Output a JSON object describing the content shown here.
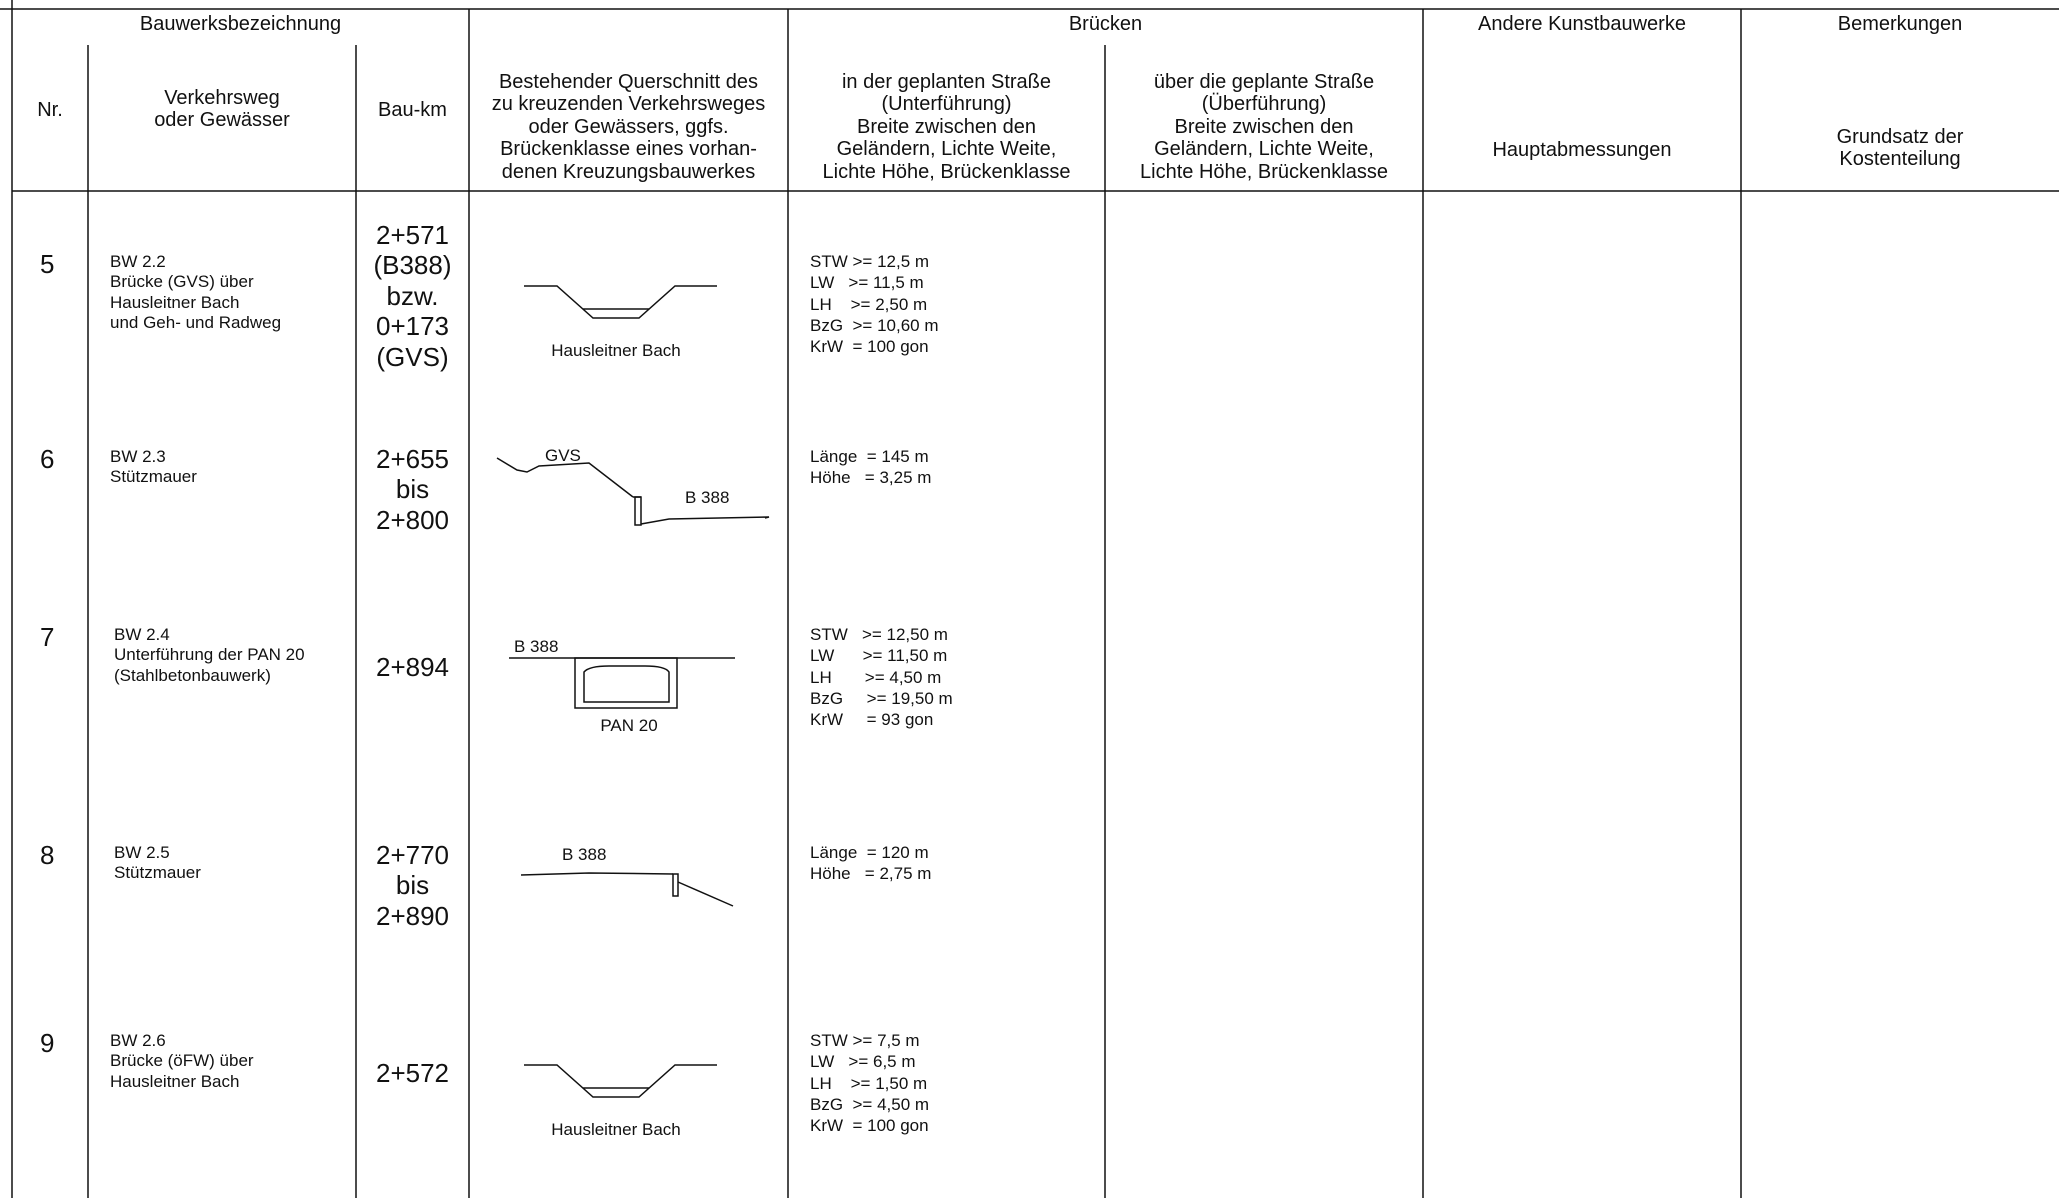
{
  "header": {
    "group_bauwerk": "Bauwerksbezeichnung",
    "group_bruecken": "Brücken",
    "group_andere": "Andere Kunstbauwerke",
    "group_bemerkungen": "Bemerkungen",
    "col_nr": "Nr.",
    "col_verkehrsweg": "Verkehrsweg\noder Gewässer",
    "col_baukm": "Bau-km",
    "col_querschnitt": "Bestehender Querschnitt des\nzu kreuzenden Verkehrsweges\noder Gewässers, ggfs.\nBrückenklasse eines vorhan-\ndenen Kreuzungsbauwerkes",
    "col_unterfuehrung": "in der geplanten Straße\n(Unterführung)\nBreite zwischen den\nGeländern, Lichte Weite,\nLichte Höhe, Brückenklasse",
    "col_ueberfuehrung": "über die geplante Straße\n(Überführung)\nBreite zwischen den\nGeländern, Lichte Weite,\nLichte Höhe, Brückenklasse",
    "col_hauptabmessungen": "Hauptabmessungen",
    "col_kostenteilung": "Grundsatz der\nKostenteilung"
  },
  "rows": [
    {
      "nr": "5",
      "name": "BW 2.2\nBrücke (GVS) über\nHausleitner Bach\nund Geh- und Radweg",
      "baukm": "2+571\n(B388)\nbzw.\n0+173\n(GVS)",
      "sketch": "channel-icon",
      "sketch_label": "Hausleitner Bach",
      "spec": "STW >= 12,5 m\nLW   >= 11,5 m\nLH    >= 2,50 m\nBzG  >= 10,60 m\nKrW  = 100 gon"
    },
    {
      "nr": "6",
      "name": "BW 2.3\nStützmauer",
      "baukm": "2+655\nbis\n2+800",
      "sketch": "retaining-wall-icon",
      "sketch_label_1": "GVS",
      "sketch_label_2": "B 388",
      "spec": "Länge  = 145 m\nHöhe   = 3,25 m"
    },
    {
      "nr": "7",
      "name": "BW 2.4\nUnterführung der PAN 20\n(Stahlbetonbauwerk)",
      "baukm": "2+894",
      "sketch": "underpass-icon",
      "sketch_label_1": "B 388",
      "sketch_label_2": "PAN 20",
      "spec": "STW   >= 12,50 m\nLW      >= 11,50 m\nLH       >= 4,50 m\nBzG     >= 19,50 m\nKrW     = 93 gon"
    },
    {
      "nr": "8",
      "name": "BW 2.5\nStützmauer",
      "baukm": "2+770\nbis\n2+890",
      "sketch": "retaining-wall-icon",
      "sketch_label": "B 388",
      "spec": "Länge  = 120 m\nHöhe   = 2,75 m"
    },
    {
      "nr": "9",
      "name": "BW 2.6\nBrücke (öFW) über\nHausleitner Bach",
      "baukm": "2+572",
      "sketch": "channel-icon",
      "sketch_label": "Hausleitner Bach",
      "spec": "STW >= 7,5 m\nLW   >= 6,5 m\nLH    >= 1,50 m\nBzG  >= 4,50 m\nKrW  = 100 gon"
    }
  ]
}
